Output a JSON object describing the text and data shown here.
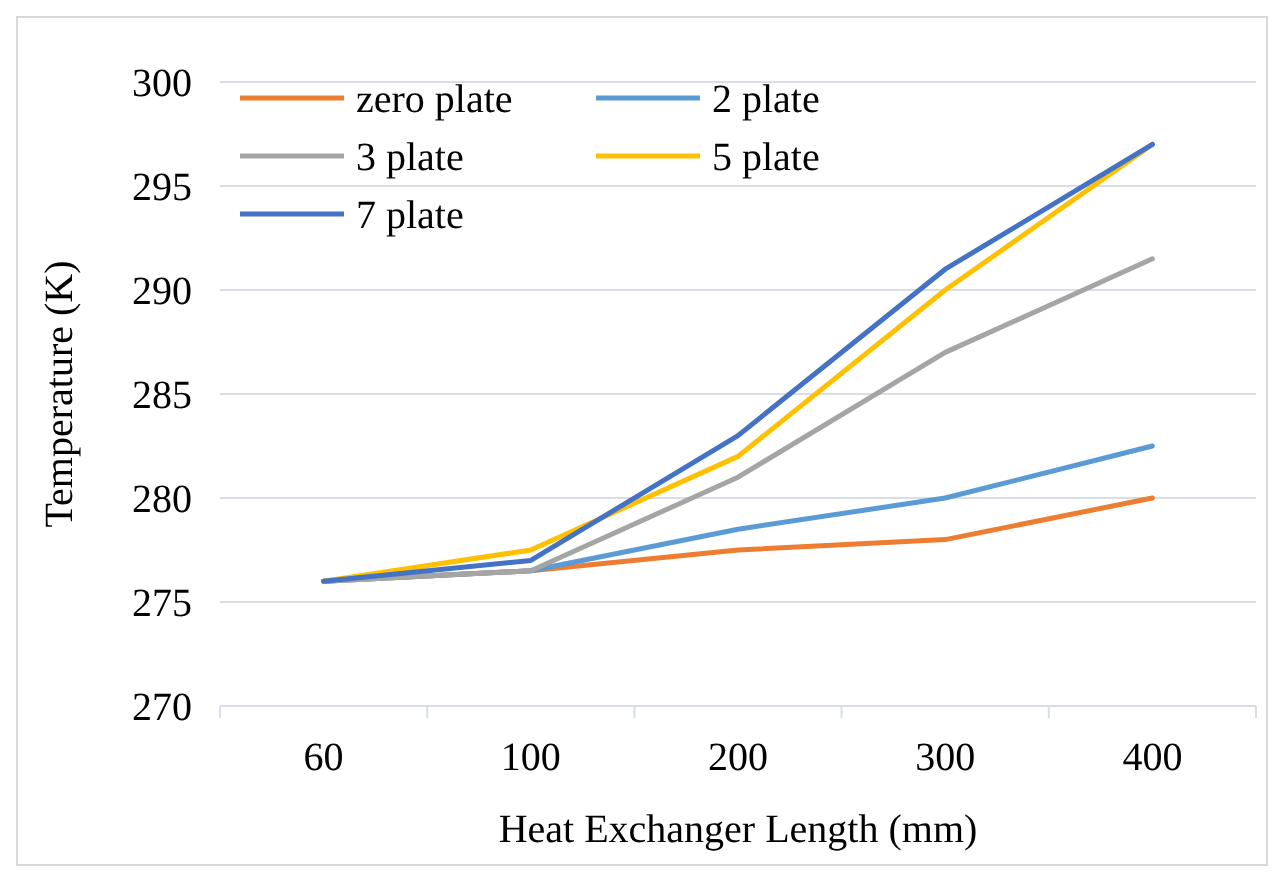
{
  "chart_data": {
    "type": "line",
    "xlabel": "Heat Exchanger Length (mm)",
    "ylabel": "Temperature (K)",
    "categories": [
      "60",
      "100",
      "200",
      "300",
      "400"
    ],
    "ylim": [
      270,
      300
    ],
    "yticks": [
      270,
      275,
      280,
      285,
      290,
      295,
      300
    ],
    "grid": "y",
    "legend": "top left",
    "marker": "none",
    "line_style": "solid",
    "series": [
      {
        "name": "zero plate",
        "color": "#ed7d31",
        "values": [
          276,
          276.5,
          277.5,
          278,
          280
        ]
      },
      {
        "name": "2 plate",
        "color": "#5b9bd5",
        "values": [
          276,
          276.5,
          278.5,
          280,
          282.5
        ]
      },
      {
        "name": "3 plate",
        "color": "#a5a5a5",
        "values": [
          276,
          276.5,
          281,
          287,
          291.5
        ]
      },
      {
        "name": "5 plate",
        "color": "#ffc000",
        "values": [
          276,
          277.5,
          282,
          290,
          297
        ]
      },
      {
        "name": "7 plate",
        "color": "#4472c4",
        "values": [
          276,
          277,
          283,
          291,
          297
        ]
      }
    ]
  }
}
